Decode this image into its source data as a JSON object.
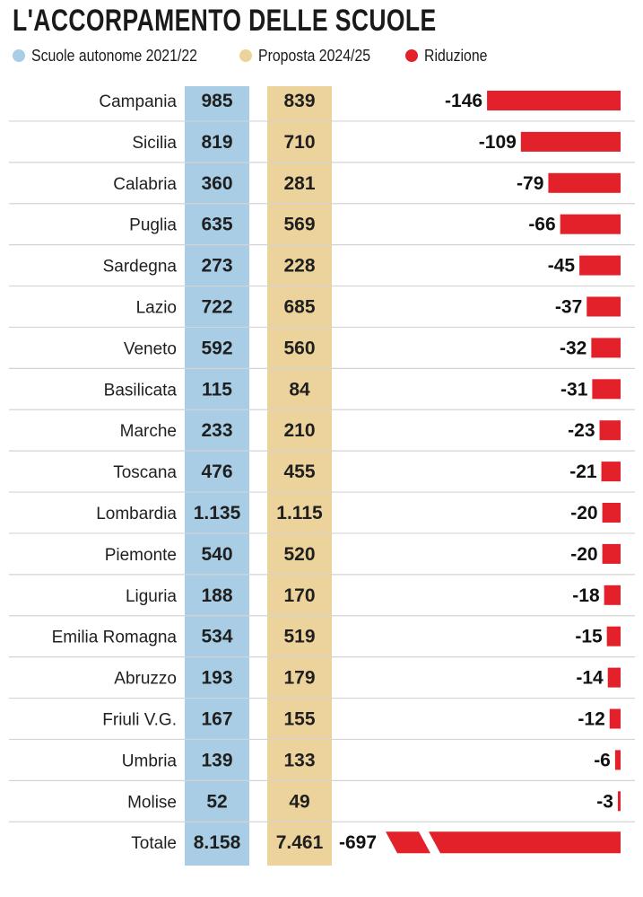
{
  "title": "L'ACCORPAMENTO DELLE SCUOLE",
  "legend": [
    {
      "label": "Scuole autonome 2021/22",
      "color": "#a8cde4"
    },
    {
      "label": "Proposta 2024/25",
      "color": "#ecd39b"
    },
    {
      "label": "Riduzione",
      "color": "#e2212a"
    }
  ],
  "colors": {
    "col_2021": "#a8cde4",
    "col_2024": "#ecd39b",
    "bar": "#e2212a",
    "separator": "#d4d4d4"
  },
  "chart_data": {
    "type": "table",
    "title": "L'ACCORPAMENTO DELLE SCUOLE",
    "columns": [
      "Scuole autonome 2021/22",
      "Proposta 2024/25",
      "Riduzione"
    ],
    "rows": [
      {
        "region": "Campania",
        "v2021": "985",
        "v2024": "839",
        "reduction": -146
      },
      {
        "region": "Sicilia",
        "v2021": "819",
        "v2024": "710",
        "reduction": -109
      },
      {
        "region": "Calabria",
        "v2021": "360",
        "v2024": "281",
        "reduction": -79
      },
      {
        "region": "Puglia",
        "v2021": "635",
        "v2024": "569",
        "reduction": -66
      },
      {
        "region": "Sardegna",
        "v2021": "273",
        "v2024": "228",
        "reduction": -45
      },
      {
        "region": "Lazio",
        "v2021": "722",
        "v2024": "685",
        "reduction": -37
      },
      {
        "region": "Veneto",
        "v2021": "592",
        "v2024": "560",
        "reduction": -32
      },
      {
        "region": "Basilicata",
        "v2021": "115",
        "v2024": "84",
        "reduction": -31
      },
      {
        "region": "Marche",
        "v2021": "233",
        "v2024": "210",
        "reduction": -23
      },
      {
        "region": "Toscana",
        "v2021": "476",
        "v2024": "455",
        "reduction": -21
      },
      {
        "region": "Lombardia",
        "v2021": "1.135",
        "v2024": "1.115",
        "reduction": -20
      },
      {
        "region": "Piemonte",
        "v2021": "540",
        "v2024": "520",
        "reduction": -20
      },
      {
        "region": "Liguria",
        "v2021": "188",
        "v2024": "170",
        "reduction": -18
      },
      {
        "region": "Emilia Romagna",
        "v2021": "534",
        "v2024": "519",
        "reduction": -15
      },
      {
        "region": "Abruzzo",
        "v2021": "193",
        "v2024": "179",
        "reduction": -14
      },
      {
        "region": "Friuli V.G.",
        "v2021": "167",
        "v2024": "155",
        "reduction": -12
      },
      {
        "region": "Umbria",
        "v2021": "139",
        "v2024": "133",
        "reduction": -6
      },
      {
        "region": "Molise",
        "v2021": "52",
        "v2024": "49",
        "reduction": -3
      }
    ],
    "total": {
      "region": "Totale",
      "v2021": "8.158",
      "v2024": "7.461",
      "reduction": -697
    }
  }
}
